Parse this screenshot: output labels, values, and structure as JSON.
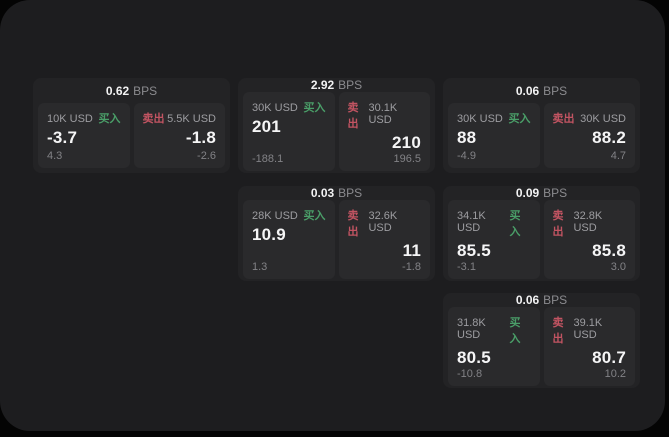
{
  "labels": {
    "bps": "BPS",
    "buy": "买入",
    "sell": "卖出"
  },
  "colors": {
    "buy": "#4a9e68",
    "sell": "#c25462",
    "panel_bg": "#1d1d1f",
    "card_bg": "#232325",
    "subpanel_bg": "#2a2a2c"
  },
  "cards": [
    {
      "row": 1,
      "col": 1,
      "bps": "0.62",
      "buy": {
        "amount": "10K USD",
        "price": "-3.7",
        "delta": "4.3"
      },
      "sell": {
        "amount": "5.5K USD",
        "price": "-1.8",
        "delta": "-2.6"
      }
    },
    {
      "row": 1,
      "col": 2,
      "bps": "2.92",
      "buy": {
        "amount": "30K USD",
        "price": "201",
        "delta": "-188.1"
      },
      "sell": {
        "amount": "30.1K USD",
        "price": "210",
        "delta": "196.5"
      }
    },
    {
      "row": 1,
      "col": 3,
      "bps": "0.06",
      "buy": {
        "amount": "30K USD",
        "price": "88",
        "delta": "-4.9"
      },
      "sell": {
        "amount": "30K USD",
        "price": "88.2",
        "delta": "4.7"
      }
    },
    {
      "row": 2,
      "col": 2,
      "bps": "0.03",
      "buy": {
        "amount": "28K USD",
        "price": "10.9",
        "delta": "1.3"
      },
      "sell": {
        "amount": "32.6K USD",
        "price": "11",
        "delta": "-1.8"
      }
    },
    {
      "row": 2,
      "col": 3,
      "bps": "0.09",
      "buy": {
        "amount": "34.1K USD",
        "price": "85.5",
        "delta": "-3.1"
      },
      "sell": {
        "amount": "32.8K USD",
        "price": "85.8",
        "delta": "3.0"
      }
    },
    {
      "row": 3,
      "col": 3,
      "bps": "0.06",
      "buy": {
        "amount": "31.8K USD",
        "price": "80.5",
        "delta": "-10.8"
      },
      "sell": {
        "amount": "39.1K USD",
        "price": "80.7",
        "delta": "10.2"
      }
    }
  ]
}
